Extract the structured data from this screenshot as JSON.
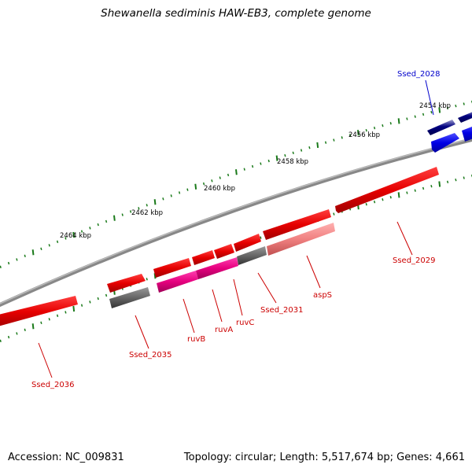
{
  "title": "Shewanella sediminis HAW-EB3, complete genome",
  "footer": {
    "accession": "Accession: NC_009831",
    "summary": "Topology: circular; Length: 5,517,674 bp; Genes: 4,661"
  },
  "colors": {
    "forward_cds": "#e60000",
    "reverse_cds": "#e60000",
    "highlight_cds": "#e6007e",
    "pseudo_cds": "#666666",
    "light_cds": "#f08080",
    "blue_cds": "#0000e6",
    "navy_cds": "#000080",
    "backbone": "#888888",
    "tick": "#1a7a1a",
    "red_label": "#cc0000",
    "blue_label": "#0000cc"
  },
  "ticks": [
    {
      "label": "2454 kbp"
    },
    {
      "label": "2456 kbp"
    },
    {
      "label": "2458 kbp"
    },
    {
      "label": "2460 kbp"
    },
    {
      "label": "2462 kbp"
    },
    {
      "label": "2464 kbp"
    }
  ],
  "genes": [
    {
      "label": "Ssed_2028",
      "color": "blue"
    },
    {
      "label": "Ssed_2029",
      "color": "red"
    },
    {
      "label": "aspS",
      "color": "red"
    },
    {
      "label": "Ssed_2031",
      "color": "red"
    },
    {
      "label": "ruvC",
      "color": "red"
    },
    {
      "label": "ruvA",
      "color": "red"
    },
    {
      "label": "ruvB",
      "color": "red"
    },
    {
      "label": "Ssed_2035",
      "color": "red"
    },
    {
      "label": "Ssed_2036",
      "color": "red"
    }
  ]
}
